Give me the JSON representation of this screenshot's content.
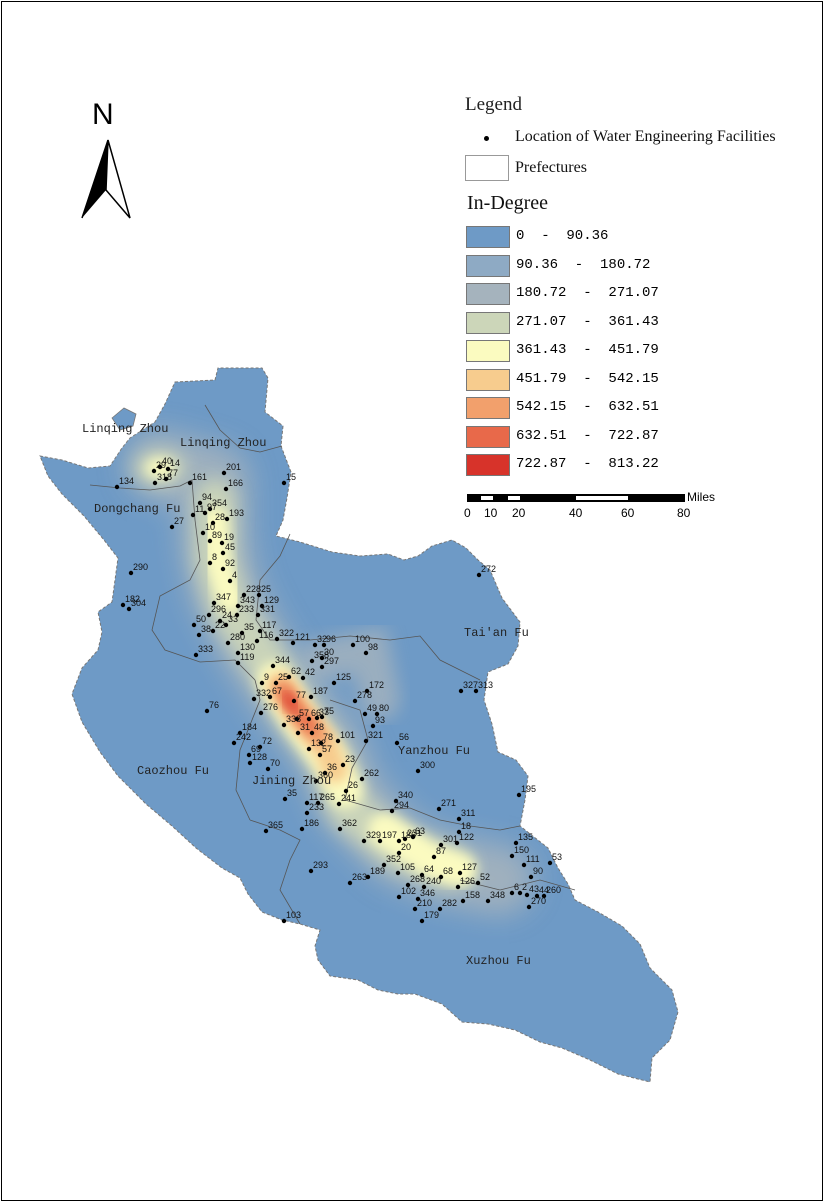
{
  "legend": {
    "title": "Legend",
    "point_label": "Location of Water Engineering Facilities",
    "polygon_label": "Prefectures",
    "ramp_title": "In-Degree",
    "classes": [
      {
        "label": "0  -  90.36",
        "color": "#6e9ac6"
      },
      {
        "label": "90.36  -  180.72",
        "color": "#8eaac4"
      },
      {
        "label": "180.72  -  271.07",
        "color": "#a5b3bd"
      },
      {
        "label": "271.07  -  361.43",
        "color": "#ccd6b9"
      },
      {
        "label": "361.43  -  451.79",
        "color": "#fbfbc0"
      },
      {
        "label": "451.79  -  542.15",
        "color": "#f7cc8e"
      },
      {
        "label": "542.15  -  632.51",
        "color": "#f2a06c"
      },
      {
        "label": "632.51  -  722.87",
        "color": "#e8694a"
      },
      {
        "label": "722.87  -  813.22",
        "color": "#d7332a"
      }
    ]
  },
  "scale_bar": {
    "unit": "Miles",
    "ticks": [
      "0",
      "10",
      "20",
      "40",
      "60",
      "80"
    ]
  },
  "north_arrow": {
    "letter": "N"
  },
  "prefectures": [
    {
      "name": "Linqing Zhou",
      "key": "linqing-zhou-west"
    },
    {
      "name": "Linqing Zhou",
      "key": "linqing-zhou-east"
    },
    {
      "name": "Dongchang Fu",
      "key": "dongchang-fu"
    },
    {
      "name": "Tai'an Fu",
      "key": "taian-fu"
    },
    {
      "name": "Yanzhou Fu",
      "key": "yanzhou-fu"
    },
    {
      "name": "Caozhou Fu",
      "key": "caozhou-fu"
    },
    {
      "name": "Jining Zhou",
      "key": "jining-zhou"
    },
    {
      "name": "Xuzhou Fu",
      "key": "xuzhou-fu"
    }
  ],
  "facility_labels": [
    "40",
    "29",
    "14",
    "318",
    "77",
    "134",
    "161",
    "201",
    "166",
    "15",
    "94",
    "354",
    "11",
    "97",
    "27",
    "193",
    "28",
    "10",
    "89",
    "19",
    "45",
    "8",
    "92",
    "4",
    "290",
    "228",
    "25",
    "347",
    "129",
    "296",
    "343",
    "331",
    "233",
    "24",
    "182",
    "304",
    "50",
    "33",
    "22",
    "35",
    "117",
    "38",
    "280",
    "116",
    "322",
    "121",
    "333",
    "130",
    "119",
    "32",
    "96",
    "100",
    "98",
    "358",
    "30",
    "297",
    "344",
    "272",
    "9",
    "25",
    "62",
    "42",
    "125",
    "332",
    "67",
    "187",
    "172",
    "327",
    "313",
    "276",
    "278",
    "77",
    "57",
    "75",
    "49",
    "80",
    "76",
    "338",
    "33",
    "93",
    "184",
    "242",
    "72",
    "48",
    "78",
    "101",
    "321",
    "56",
    "31",
    "57",
    "66",
    "132",
    "69",
    "128",
    "70",
    "23",
    "36",
    "300",
    "360",
    "262",
    "195",
    "35",
    "26",
    "117",
    "265",
    "233",
    "241",
    "340",
    "294",
    "186",
    "365",
    "271",
    "311",
    "362",
    "329",
    "197",
    "231",
    "186",
    "63",
    "18",
    "301",
    "20",
    "122",
    "135",
    "150",
    "53",
    "111",
    "293",
    "263",
    "189",
    "352",
    "105",
    "64",
    "87",
    "68",
    "127",
    "268",
    "240",
    "90",
    "52",
    "6",
    "2",
    "43",
    "44",
    "260",
    "126",
    "102",
    "346",
    "158",
    "348",
    "270",
    "210",
    "282",
    "103",
    "179"
  ]
}
